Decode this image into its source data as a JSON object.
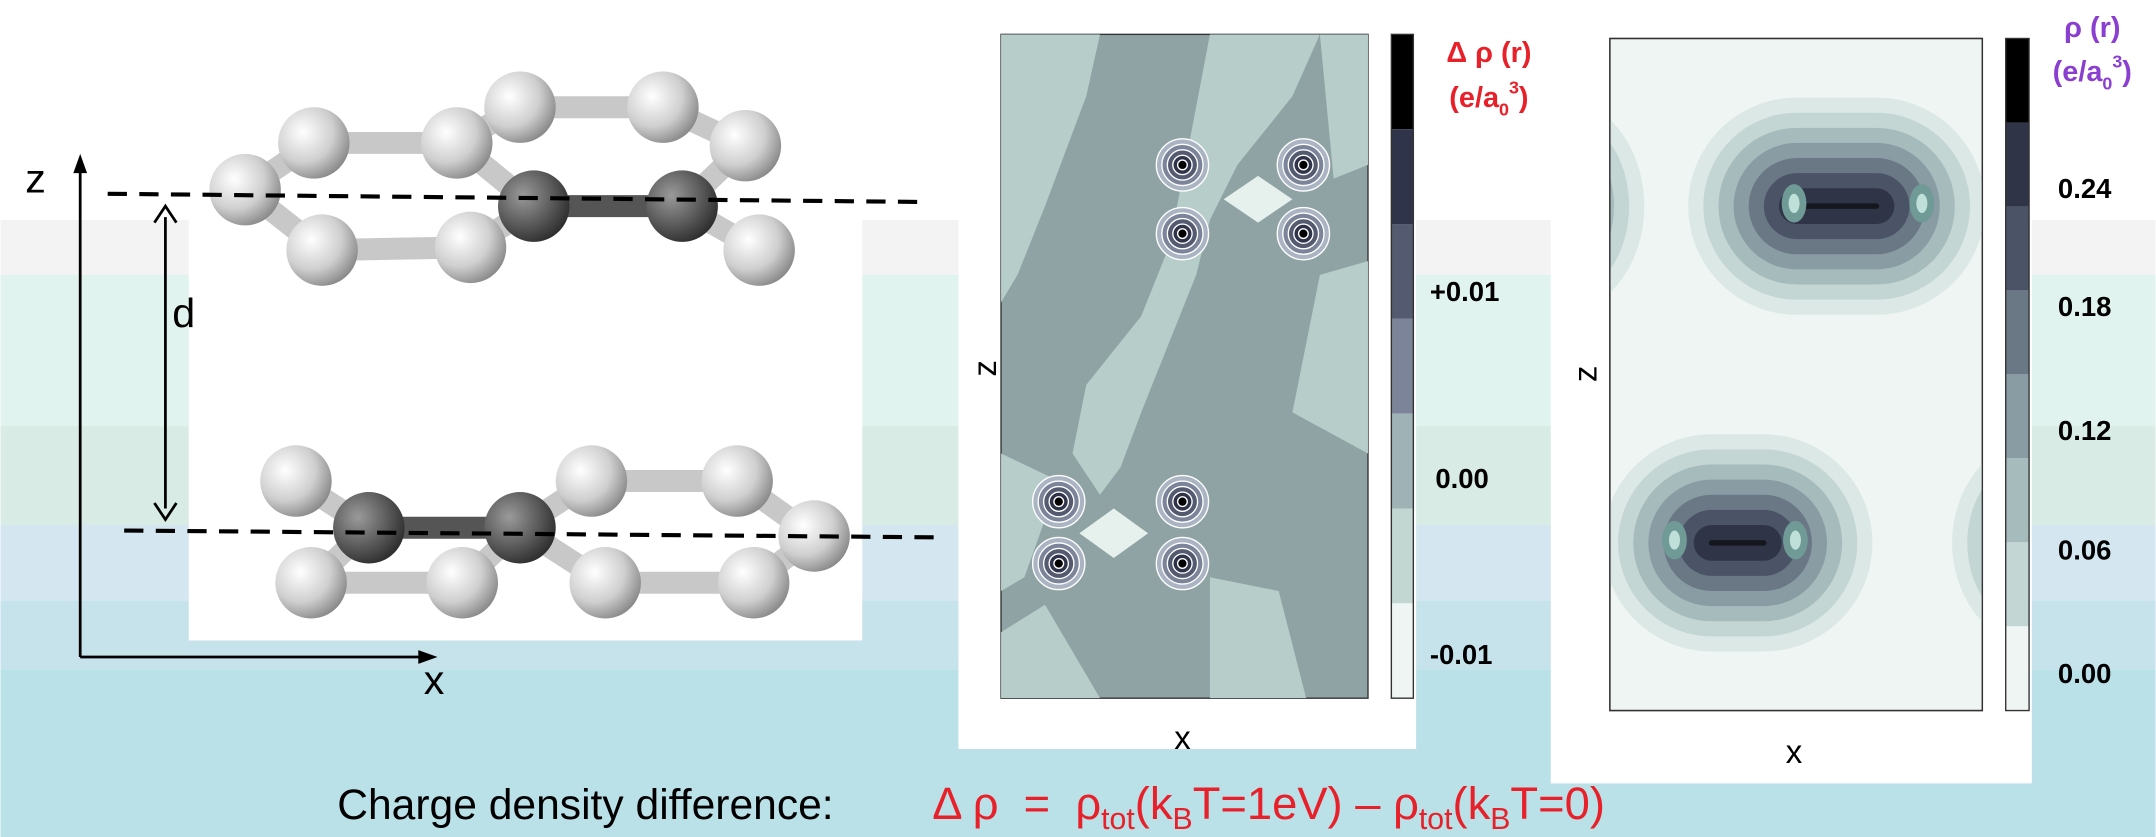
{
  "diagram": {
    "axis_z": "z",
    "axis_x": "x",
    "separation": "d"
  },
  "difference_plot": {
    "x_label": "x",
    "z_label": "z",
    "colorbar_title": "Δ ρ (r)",
    "colorbar_unit": [
      "(e/a",
      "0",
      "3",
      ")"
    ],
    "colorbar_ticks": [
      "+0.01",
      "0.00",
      "-0.01"
    ]
  },
  "density_plot": {
    "x_label": "x",
    "z_label": "z",
    "colorbar_title": "ρ (r)",
    "colorbar_unit": [
      "(e/a",
      "0",
      "3",
      ")"
    ],
    "colorbar_ticks": [
      "0.24",
      "0.18",
      "0.12",
      "0.06",
      "0.00"
    ]
  },
  "caption": {
    "label": "Charge density difference:",
    "formula": [
      "Δ ρ  =  ρ",
      "tot",
      "(k",
      "B",
      "T=1eV) – ρ",
      "tot",
      "(k",
      "B",
      "T=0)"
    ]
  }
}
